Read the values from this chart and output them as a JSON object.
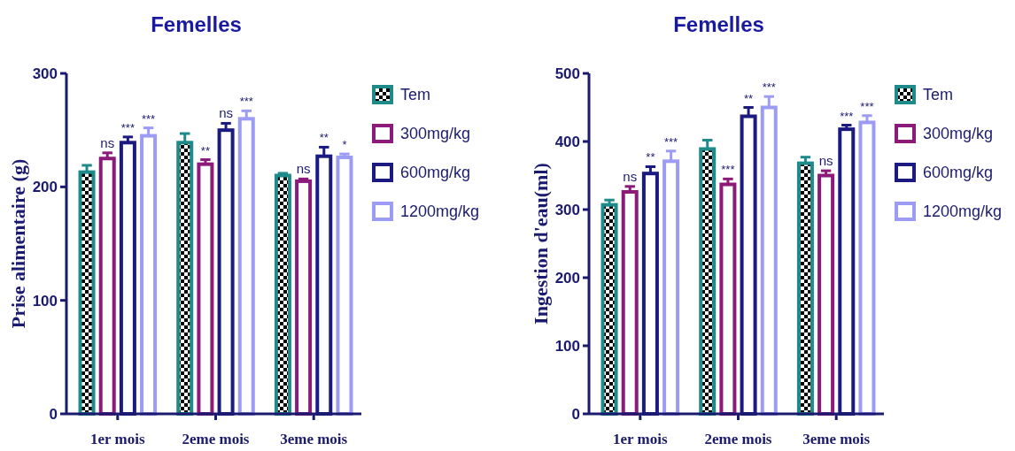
{
  "chart_data": [
    {
      "type": "bar",
      "title": "Femelles",
      "ylabel": "Prise alimentaire (g)",
      "categories": [
        "1er mois",
        "2eme mois",
        "3eme mois"
      ],
      "ylim": [
        0,
        300
      ],
      "yticks": [
        0,
        100,
        200,
        300
      ],
      "grid": false,
      "legend": "right",
      "series": [
        {
          "name": "Tem",
          "color": "#1f8a8a",
          "values": [
            213,
            239,
            210
          ],
          "errors": [
            6,
            8,
            2
          ]
        },
        {
          "name": "300mg/kg",
          "color": "#8b1a7a",
          "values": [
            225,
            220,
            205
          ],
          "errors": [
            5,
            4,
            2
          ],
          "value_labels": [
            "ns",
            "**",
            "ns"
          ]
        },
        {
          "name": "600mg/kg",
          "color": "#1a1a80",
          "values": [
            239,
            250,
            227
          ],
          "errors": [
            5,
            6,
            8
          ],
          "value_labels": [
            "***",
            "ns",
            "**"
          ]
        },
        {
          "name": "1200mg/kg",
          "color": "#9c9cf5",
          "values": [
            245,
            260,
            226
          ],
          "errors": [
            7,
            7,
            3
          ],
          "value_labels": [
            "***",
            "***",
            "*"
          ]
        }
      ]
    },
    {
      "type": "bar",
      "title": "Femelles",
      "ylabel": "Ingestion d'eau(ml)",
      "categories": [
        "1er mois",
        "2eme mois",
        "3eme mois"
      ],
      "ylim": [
        0,
        500
      ],
      "yticks": [
        0,
        100,
        200,
        300,
        400,
        500
      ],
      "grid": false,
      "legend": "right",
      "series": [
        {
          "name": "Tem",
          "color": "#1f8a8a",
          "values": [
            307,
            389,
            368
          ],
          "errors": [
            7,
            13,
            9
          ]
        },
        {
          "name": "300mg/kg",
          "color": "#8b1a7a",
          "values": [
            326,
            337,
            350
          ],
          "errors": [
            8,
            8,
            7
          ],
          "value_labels": [
            "ns",
            "***",
            "ns"
          ]
        },
        {
          "name": "600mg/kg",
          "color": "#1a1a80",
          "values": [
            353,
            437,
            418
          ],
          "errors": [
            10,
            13,
            6
          ],
          "value_labels": [
            "**",
            "**",
            "***"
          ]
        },
        {
          "name": "1200mg/kg",
          "color": "#9c9cf5",
          "values": [
            371,
            450,
            428
          ],
          "errors": [
            15,
            16,
            10
          ],
          "value_labels": [
            "***",
            "***",
            "***"
          ]
        }
      ]
    }
  ]
}
